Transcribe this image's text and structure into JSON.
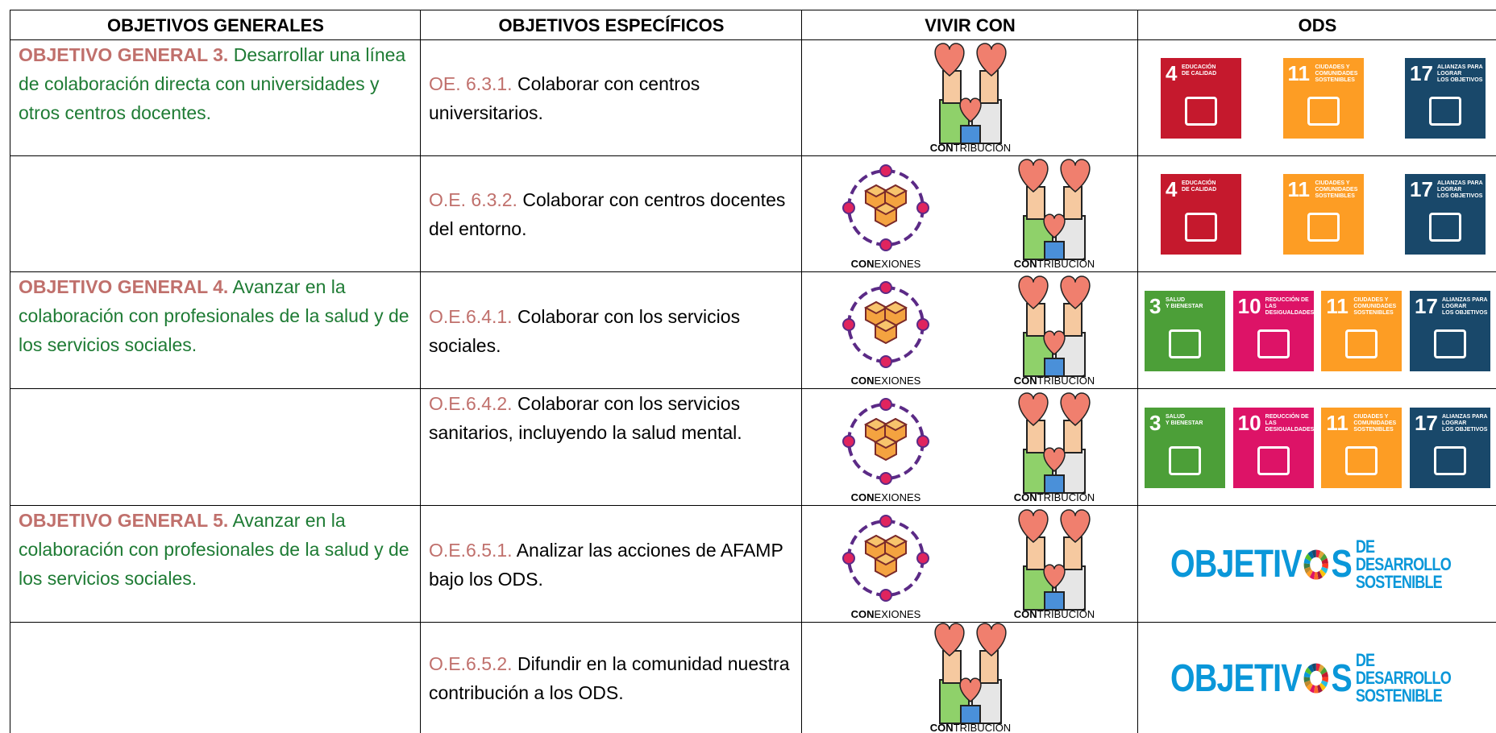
{
  "table": {
    "headers": [
      "OBJETIVOS GENERALES",
      "OBJETIVOS ESPECÍFICOS",
      "VIVIR CON",
      "ODS"
    ],
    "rows": [
      {
        "general": {
          "label": "OBJETIVO GENERAL 3.",
          "text": "Desarrollar una línea de colaboración directa con universidades y otros centros docentes."
        },
        "specific": {
          "code": "OE. 6.3.1.",
          "text": "Colaborar con centros universitarios."
        },
        "vivir_con": [
          {
            "kind": "contribucion",
            "bold": "CON",
            "rest": "TRIBUCIÓN"
          }
        ],
        "ods": [
          {
            "number": 4,
            "lines": [
              "EDUCACIÓN",
              "DE CALIDAD"
            ],
            "color": "#c5192d"
          },
          {
            "number": 11,
            "lines": [
              "CIUDADES Y",
              "COMUNIDADES",
              "SOSTENIBLES"
            ],
            "color": "#fd9d24"
          },
          {
            "number": 17,
            "lines": [
              "ALIANZAS PARA",
              "LOGRAR",
              "LOS OBJETIVOS"
            ],
            "color": "#19486a"
          }
        ]
      },
      {
        "specific": {
          "code": "O.E. 6.3.2.",
          "text": "Colaborar con centros docentes del entorno."
        },
        "vivir_con": [
          {
            "kind": "conexiones",
            "bold": "CON",
            "rest": "EXIONES"
          },
          {
            "kind": "contribucion",
            "bold": "CON",
            "rest": "TRIBUCIÓN"
          }
        ],
        "ods": [
          {
            "number": 4,
            "lines": [
              "EDUCACIÓN",
              "DE CALIDAD"
            ],
            "color": "#c5192d"
          },
          {
            "number": 11,
            "lines": [
              "CIUDADES Y",
              "COMUNIDADES",
              "SOSTENIBLES"
            ],
            "color": "#fd9d24"
          },
          {
            "number": 17,
            "lines": [
              "ALIANZAS PARA",
              "LOGRAR",
              "LOS OBJETIVOS"
            ],
            "color": "#19486a"
          }
        ]
      },
      {
        "general": {
          "label": "OBJETIVO GENERAL 4.",
          "text": "Avanzar en la colaboración con profesionales de la salud y de los servicios sociales."
        },
        "specific": {
          "code": "O.E.6.4.1.",
          "text": "Colaborar con los servicios sociales."
        },
        "vivir_con": [
          {
            "kind": "conexiones",
            "bold": "CON",
            "rest": "EXIONES"
          },
          {
            "kind": "contribucion",
            "bold": "CON",
            "rest": "TRIBUCIÓN"
          }
        ],
        "ods": [
          {
            "number": 3,
            "lines": [
              "SALUD",
              "Y BIENESTAR"
            ],
            "color": "#4c9f38"
          },
          {
            "number": 10,
            "lines": [
              "REDUCCIÓN DE LAS",
              "DESIGUALDADES"
            ],
            "color": "#dd1367"
          },
          {
            "number": 11,
            "lines": [
              "CIUDADES Y",
              "COMUNIDADES",
              "SOSTENIBLES"
            ],
            "color": "#fd9d24"
          },
          {
            "number": 17,
            "lines": [
              "ALIANZAS PARA",
              "LOGRAR",
              "LOS OBJETIVOS"
            ],
            "color": "#19486a"
          }
        ]
      },
      {
        "specific": {
          "code": "O.E.6.4.2.",
          "text": "Colaborar con los servicios sanitarios, incluyendo la salud mental."
        },
        "vivir_con": [
          {
            "kind": "conexiones",
            "bold": "CON",
            "rest": "EXIONES"
          },
          {
            "kind": "contribucion",
            "bold": "CON",
            "rest": "TRIBUCIÓN"
          }
        ],
        "ods": [
          {
            "number": 3,
            "lines": [
              "SALUD",
              "Y BIENESTAR"
            ],
            "color": "#4c9f38"
          },
          {
            "number": 10,
            "lines": [
              "REDUCCIÓN DE LAS",
              "DESIGUALDADES"
            ],
            "color": "#dd1367"
          },
          {
            "number": 11,
            "lines": [
              "CIUDADES Y",
              "COMUNIDADES",
              "SOSTENIBLES"
            ],
            "color": "#fd9d24"
          },
          {
            "number": 17,
            "lines": [
              "ALIANZAS PARA",
              "LOGRAR",
              "LOS OBJETIVOS"
            ],
            "color": "#19486a"
          }
        ]
      },
      {
        "general": {
          "label": "OBJETIVO GENERAL 5.",
          "text": "Avanzar en la colaboración con profesionales de la salud y de los servicios sociales."
        },
        "specific": {
          "code": "O.E.6.5.1.",
          "text": "Analizar las acciones de AFAMP bajo los ODS."
        },
        "vivir_con": [
          {
            "kind": "conexiones",
            "bold": "CON",
            "rest": "EXIONES"
          },
          {
            "kind": "contribucion",
            "bold": "CON",
            "rest": "TRIBUCIÓN"
          }
        ],
        "logo": {
          "word": [
            "OBJETIV",
            "S"
          ],
          "sub": [
            "DE DESARROLLO",
            "SOSTENIBLE"
          ]
        }
      },
      {
        "specific": {
          "code": "O.E.6.5.2.",
          "text": "Difundir en la comunidad nuestra contribución a los ODS."
        },
        "vivir_con": [
          {
            "kind": "contribucion",
            "bold": "CON",
            "rest": "TRIBUCIÓN"
          }
        ],
        "logo": {
          "word": [
            "OBJETIV",
            "S"
          ],
          "sub": [
            "DE DESARROLLO",
            "SOSTENIBLE"
          ]
        }
      }
    ]
  }
}
